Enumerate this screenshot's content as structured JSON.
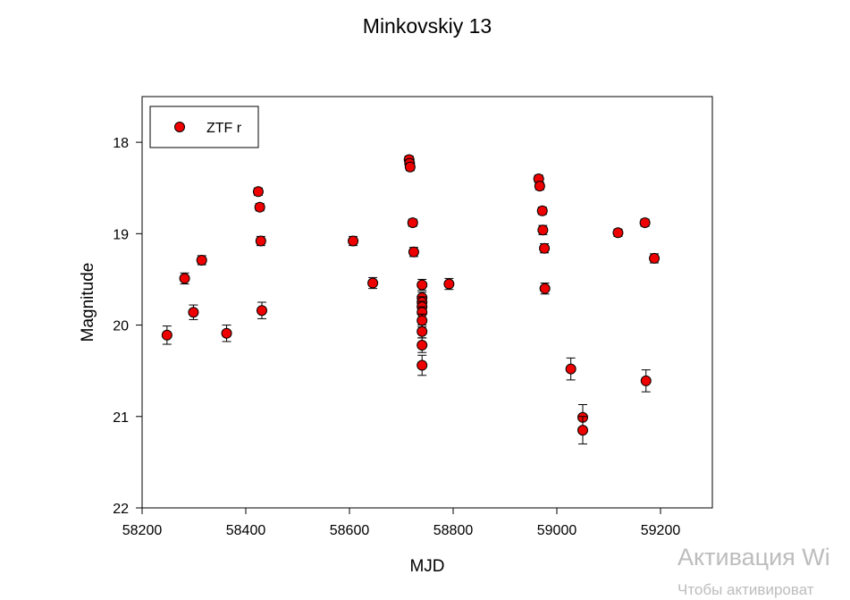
{
  "chart_data": {
    "type": "scatter",
    "title": "Minkovskiy 13",
    "xlabel": "MJD",
    "ylabel": "Magnitude",
    "xlim": [
      58200,
      59300
    ],
    "ylim": [
      22,
      17.5
    ],
    "y_inverted": true,
    "xticks": [
      58200,
      58400,
      58600,
      58800,
      59000,
      59200
    ],
    "yticks": [
      18,
      19,
      20,
      21,
      22
    ],
    "grid": false,
    "legend_position": "top-left",
    "series": [
      {
        "name": "ZTF r",
        "color": "#ee0000",
        "marker": "circle",
        "points": [
          {
            "x": 58248,
            "y": 20.11,
            "err": 0.1
          },
          {
            "x": 58282,
            "y": 19.49,
            "err": 0.06
          },
          {
            "x": 58299,
            "y": 19.86,
            "err": 0.08
          },
          {
            "x": 58315,
            "y": 19.29,
            "err": 0.05
          },
          {
            "x": 58363,
            "y": 20.09,
            "err": 0.09
          },
          {
            "x": 58424,
            "y": 18.54,
            "err": 0.04
          },
          {
            "x": 58427,
            "y": 18.71,
            "err": 0.04
          },
          {
            "x": 58429,
            "y": 19.08,
            "err": 0.05
          },
          {
            "x": 58431,
            "y": 19.84,
            "err": 0.09
          },
          {
            "x": 58607,
            "y": 19.08,
            "err": 0.05
          },
          {
            "x": 58645,
            "y": 19.54,
            "err": 0.06
          },
          {
            "x": 58715,
            "y": 18.19,
            "err": 0.04
          },
          {
            "x": 58716,
            "y": 18.23,
            "err": 0.04
          },
          {
            "x": 58717,
            "y": 18.27,
            "err": 0.04
          },
          {
            "x": 58722,
            "y": 18.88,
            "err": 0.04
          },
          {
            "x": 58724,
            "y": 19.2,
            "err": 0.05
          },
          {
            "x": 58740,
            "y": 19.56,
            "err": 0.06
          },
          {
            "x": 58740,
            "y": 19.7,
            "err": 0.06
          },
          {
            "x": 58740,
            "y": 19.75,
            "err": 0.06
          },
          {
            "x": 58740,
            "y": 19.8,
            "err": 0.06
          },
          {
            "x": 58740,
            "y": 19.86,
            "err": 0.06
          },
          {
            "x": 58740,
            "y": 19.95,
            "err": 0.07
          },
          {
            "x": 58740,
            "y": 20.07,
            "err": 0.07
          },
          {
            "x": 58740,
            "y": 20.22,
            "err": 0.08
          },
          {
            "x": 58740,
            "y": 20.44,
            "err": 0.11
          },
          {
            "x": 58792,
            "y": 19.55,
            "err": 0.06
          },
          {
            "x": 58965,
            "y": 18.4,
            "err": 0.04
          },
          {
            "x": 58967,
            "y": 18.48,
            "err": 0.04
          },
          {
            "x": 58972,
            "y": 18.75,
            "err": 0.04
          },
          {
            "x": 58973,
            "y": 18.96,
            "err": 0.05
          },
          {
            "x": 58976,
            "y": 19.16,
            "err": 0.05
          },
          {
            "x": 58977,
            "y": 19.6,
            "err": 0.06
          },
          {
            "x": 59027,
            "y": 20.48,
            "err": 0.12
          },
          {
            "x": 59050,
            "y": 21.01,
            "err": 0.14
          },
          {
            "x": 59050,
            "y": 21.15,
            "err": 0.15
          },
          {
            "x": 59118,
            "y": 18.99,
            "err": 0.04
          },
          {
            "x": 59170,
            "y": 18.88,
            "err": 0.04
          },
          {
            "x": 59172,
            "y": 20.61,
            "err": 0.12
          },
          {
            "x": 59188,
            "y": 19.27,
            "err": 0.05
          }
        ]
      }
    ]
  },
  "watermark": {
    "line1": "Активация Wi",
    "line2": "Чтобы активироват"
  }
}
